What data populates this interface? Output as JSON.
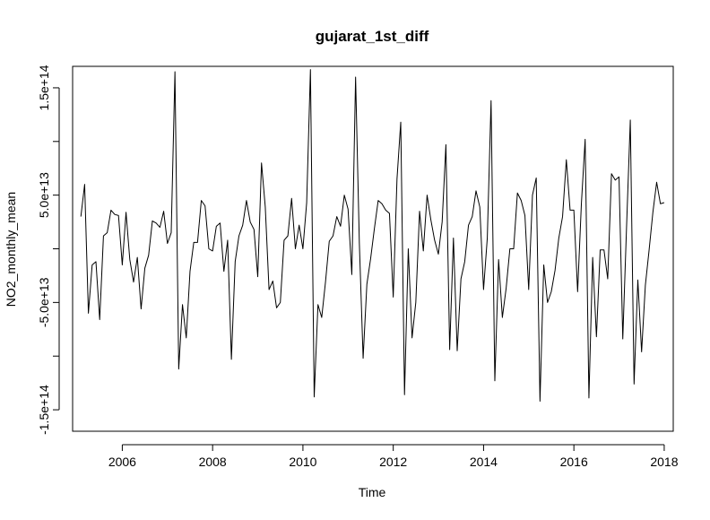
{
  "chart_data": {
    "type": "line",
    "title": "gujarat_1st_diff",
    "xlabel": "Time",
    "ylabel": "NO2_monthly_mean",
    "x_start": 2005.083,
    "x_step": 0.08333,
    "xlim": [
      2004.9,
      2018.2
    ],
    "ylim": [
      -170000000000000.0,
      170000000000000.0
    ],
    "x_ticks": [
      2006,
      2008,
      2010,
      2012,
      2014,
      2016,
      2018
    ],
    "x_tick_labels": [
      "2006",
      "2008",
      "2010",
      "2012",
      "2014",
      "2016",
      "2018"
    ],
    "y_ticks": [
      -150000000000000.0,
      -100000000000000.0,
      -50000000000000.0,
      0,
      50000000000000.0,
      100000000000000.0,
      150000000000000.0
    ],
    "y_tick_labels": [
      "-1.5e+14",
      "",
      "-5.0e+13",
      "",
      "5.0e+13",
      "",
      "1.5e+14"
    ],
    "grid": false,
    "series": [
      {
        "values": [
          30000000000000.0,
          60000000000000.0,
          -60000000000000.0,
          -15000000000000.0,
          -12000000000000.0,
          -66000000000000.0,
          12000000000000.0,
          15000000000000.0,
          36000000000000.0,
          32000000000000.0,
          31000000000000.0,
          -15000000000000.0,
          34000000000000.0,
          -10000000000000.0,
          -31000000000000.0,
          -8000000000000.0,
          -56000000000000.0,
          -18000000000000.0,
          -6000000000000.0,
          26000000000000.0,
          24000000000000.0,
          20000000000000.0,
          35000000000000.0,
          5000000000000.0,
          15000000000000.0,
          165000000000000.0,
          -112000000000000.0,
          -52000000000000.0,
          -83000000000000.0,
          -21000000000000.0,
          6000000000000.0,
          6000000000000.0,
          45000000000000.0,
          40000000000000.0,
          0,
          -2000000000000.0,
          21000000000000.0,
          24000000000000.0,
          -21000000000000.0,
          8000000000000.0,
          -103000000000000.0,
          -12000000000000.0,
          12000000000000.0,
          22000000000000.0,
          45000000000000.0,
          25000000000000.0,
          18000000000000.0,
          -26000000000000.0,
          80000000000000.0,
          39000000000000.0,
          -38000000000000.0,
          -30000000000000.0,
          -55000000000000.0,
          -50000000000000.0,
          8000000000000.0,
          12000000000000.0,
          47000000000000.0,
          0,
          22000000000000.0,
          0,
          43000000000000.0,
          167000000000000.0,
          -138000000000000.0,
          -52000000000000.0,
          -64000000000000.0,
          -31000000000000.0,
          7000000000000.0,
          12000000000000.0,
          30000000000000.0,
          21000000000000.0,
          50000000000000.0,
          37000000000000.0,
          -24000000000000.0,
          160000000000000.0,
          5000000000000.0,
          -102000000000000.0,
          -33000000000000.0,
          -9000000000000.0,
          19000000000000.0,
          45000000000000.0,
          42000000000000.0,
          36000000000000.0,
          33000000000000.0,
          -45000000000000.0,
          65000000000000.0,
          118000000000000.0,
          -136000000000000.0,
          0,
          -83000000000000.0,
          -50000000000000.0,
          35000000000000.0,
          -2000000000000.0,
          50000000000000.0,
          27000000000000.0,
          8000000000000.0,
          -5000000000000.0,
          25000000000000.0,
          97000000000000.0,
          -94000000000000.0,
          10000000000000.0,
          -95000000000000.0,
          -28000000000000.0,
          -12000000000000.0,
          22000000000000.0,
          30000000000000.0,
          54000000000000.0,
          39000000000000.0,
          -38000000000000.0,
          10000000000000.0,
          138000000000000.0,
          -123000000000000.0,
          -10000000000000.0,
          -64000000000000.0,
          -37000000000000.0,
          0,
          0,
          52000000000000.0,
          45000000000000.0,
          31000000000000.0,
          -38000000000000.0,
          50000000000000.0,
          66000000000000.0,
          -142000000000000.0,
          -15000000000000.0,
          -50000000000000.0,
          -40000000000000.0,
          -20000000000000.0,
          10000000000000.0,
          30000000000000.0,
          83000000000000.0,
          36000000000000.0,
          36000000000000.0,
          -40000000000000.0,
          42000000000000.0,
          102000000000000.0,
          -139000000000000.0,
          -8000000000000.0,
          -82000000000000.0,
          -1000000000000.0,
          -1000000000000.0,
          -28000000000000.0,
          70000000000000.0,
          64000000000000.0,
          67000000000000.0,
          -84000000000000.0,
          20000000000000.0,
          120000000000000.0,
          -126000000000000.0,
          -29000000000000.0,
          -96000000000000.0,
          -34000000000000.0,
          -1000000000000.0,
          34000000000000.0,
          62000000000000.0,
          42000000000000.0,
          43000000000000.0
        ]
      }
    ]
  }
}
